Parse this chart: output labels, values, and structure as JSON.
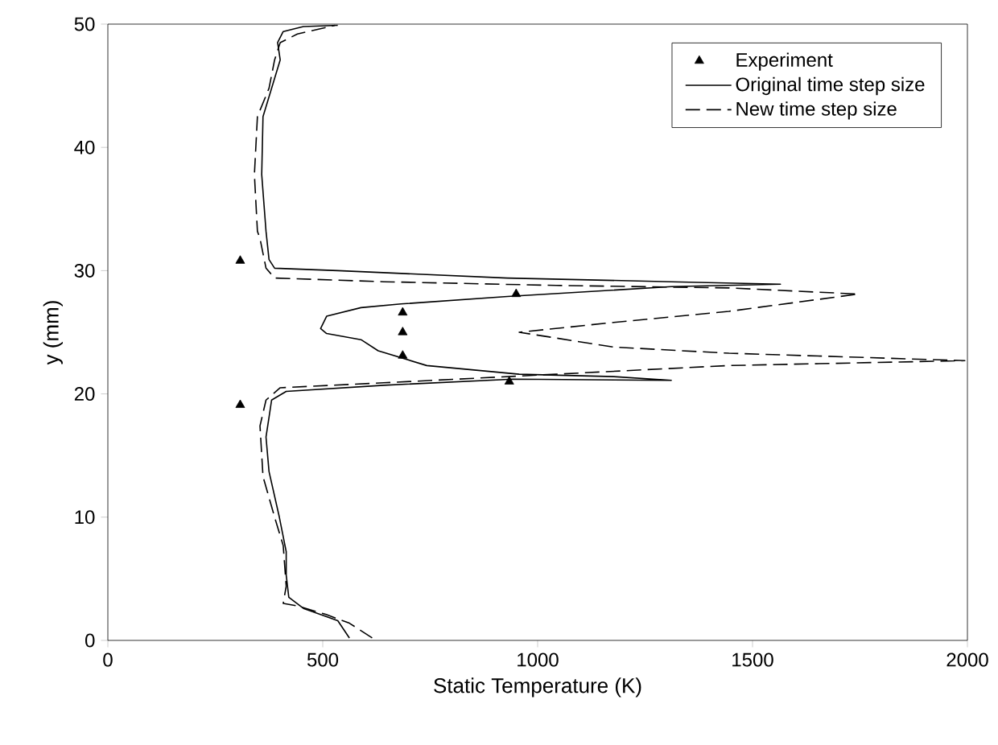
{
  "chart_data": {
    "type": "line",
    "xlabel": "Static Temperature (K)",
    "ylabel": "y (mm)",
    "xlim": [
      0,
      2000
    ],
    "xticks": [
      0,
      500,
      1000,
      1500,
      2000
    ],
    "ylim": [
      0,
      50
    ],
    "yticks": [
      0,
      10,
      20,
      30,
      40,
      50
    ],
    "grid": false,
    "legend": "top right",
    "series": [
      {
        "name": "Experiment",
        "type": "scatter",
        "marker": "triangle",
        "color": "#000000",
        "x": [
          308,
          950,
          686,
          686,
          686,
          934,
          308
        ],
        "values": [
          30.8,
          28.1,
          26.6,
          25.0,
          23.1,
          21.0,
          19.1
        ]
      },
      {
        "name": "Original time step size",
        "line_style": "solid",
        "color": "#000000",
        "x": [
          562,
          535,
          455,
          421,
          415,
          415,
          399,
          375,
          368,
          375,
          381,
          415,
          642,
          943,
          1311,
          1177,
          957,
          742,
          629,
          589,
          509,
          495,
          509,
          589,
          682,
          930,
          1311,
          1565,
          1311,
          930,
          535,
          388,
          375,
          368,
          358,
          361,
          381,
          401,
          395,
          408,
          455,
          535
        ],
        "values": [
          0.2,
          1.6,
          2.6,
          3.5,
          5.3,
          7.2,
          10,
          13.7,
          16.5,
          18.1,
          19.5,
          20.2,
          20.7,
          21.2,
          21.1,
          21.4,
          21.6,
          22.3,
          23.5,
          24.4,
          24.9,
          25.3,
          26.3,
          27.0,
          27.3,
          27.9,
          28.7,
          28.9,
          29.1,
          29.4,
          30.0,
          30.2,
          30.9,
          33.2,
          37.8,
          42.5,
          44.8,
          47.1,
          48.5,
          49.4,
          49.8,
          49.9
        ]
      },
      {
        "name": "New time step size",
        "line_style": "dashed",
        "color": "#000000",
        "x": [
          615,
          562,
          508,
          441,
          408,
          415,
          408,
          388,
          361,
          354,
          368,
          401,
          642,
          1044,
          1445,
          1994,
          1445,
          1177,
          957,
          1177,
          1445,
          1746,
          1445,
          1044,
          642,
          388,
          368,
          354,
          348,
          341,
          348,
          375,
          388,
          401,
          441,
          528
        ],
        "values": [
          0.2,
          1.4,
          2.1,
          2.8,
          3.0,
          4.4,
          7.7,
          10,
          13.3,
          17.4,
          19.5,
          20.5,
          20.9,
          21.6,
          22.3,
          22.7,
          23.3,
          23.8,
          25.0,
          25.8,
          26.7,
          28.1,
          28.6,
          28.8,
          29.1,
          29.4,
          30.2,
          32.6,
          33.2,
          37.8,
          42.5,
          44.8,
          47.1,
          48.5,
          49.2,
          49.9
        ]
      }
    ]
  }
}
